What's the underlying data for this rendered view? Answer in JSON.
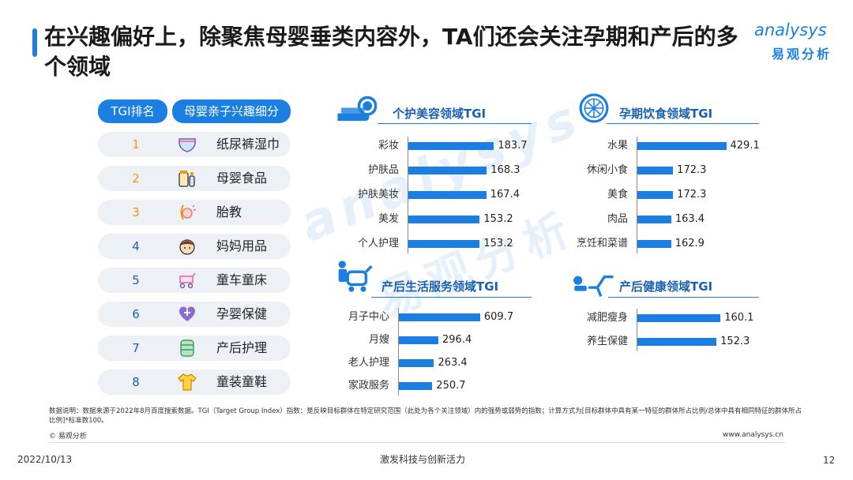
{
  "title": "在兴趣偏好上，除聚焦母婴垂类内容外，TA们还会关注孕期和产后的多个领域",
  "logo": {
    "en": "analysys",
    "zh": "易观分析"
  },
  "watermark": {
    "en": "analysys",
    "zh": "易观分析"
  },
  "rank_table": {
    "header_rank": "TGI排名",
    "header_category": "母婴亲子兴趣细分",
    "rows": [
      {
        "rank": "1",
        "label": "纸尿裤湿巾",
        "icon": "diaper-icon",
        "rank_color": "#f39800"
      },
      {
        "rank": "2",
        "label": "母婴食品",
        "icon": "baby-food-icon",
        "rank_color": "#f39800"
      },
      {
        "rank": "3",
        "label": "胎教",
        "icon": "prenatal-education-icon",
        "rank_color": "#f39800"
      },
      {
        "rank": "4",
        "label": "妈妈用品",
        "icon": "mom-products-icon",
        "rank_color": "#1a5fb0"
      },
      {
        "rank": "5",
        "label": "童车童床",
        "icon": "stroller-icon",
        "rank_color": "#1a5fb0"
      },
      {
        "rank": "6",
        "label": "孕婴保健",
        "icon": "health-heart-icon",
        "rank_color": "#1a5fb0"
      },
      {
        "rank": "7",
        "label": "产后护理",
        "icon": "postpartum-care-icon",
        "rank_color": "#1a5fb0"
      },
      {
        "rank": "8",
        "label": "童装童鞋",
        "icon": "kids-clothing-icon",
        "rank_color": "#1a5fb0"
      }
    ]
  },
  "chart_data": [
    {
      "type": "bar",
      "title": "个护美容领域TGI",
      "icon": "cosmetics-icon",
      "categories": [
        "彩妆",
        "护肤品",
        "护肤美妆",
        "美发",
        "个人护理"
      ],
      "values": [
        183.7,
        168.3,
        167.4,
        153.2,
        153.2
      ]
    },
    {
      "type": "bar",
      "title": "孕期饮食领域TGI",
      "icon": "diet-plate-icon",
      "categories": [
        "水果",
        "休闲小食",
        "美食",
        "肉品",
        "烹饪和菜谱"
      ],
      "values": [
        429.1,
        172.3,
        172.3,
        163.4,
        162.9
      ]
    },
    {
      "type": "bar",
      "title": "产后生活服务领域TGI",
      "icon": "family-service-icon",
      "categories": [
        "月子中心",
        "月嫂",
        "老人护理",
        "家政服务"
      ],
      "values": [
        609.7,
        296.4,
        263.4,
        250.7
      ]
    },
    {
      "type": "bar",
      "title": "产后健康领域TGI",
      "icon": "fitness-icon",
      "categories": [
        "减肥瘦身",
        "养生保健"
      ],
      "values": [
        160.1,
        152.3
      ]
    }
  ],
  "colors": {
    "accent": "#1a7fe0",
    "rank_top": "#f39800",
    "row_bg": "#edf1f6"
  },
  "footer": {
    "note": "数据说明：数据来源于2022年8月百度搜索数据。TGI（Target Group Index）指数：是反映目标群体在特定研究范围（此处为各个关注领域）内的强势或弱势的指数；计算方式为[目标群体中具有某一特征的群体所占比例/总体中具有相同特征的群体所占比例]*标准数100。",
    "copyright": "© 易观分析",
    "site": "www.analysys.cn",
    "date": "2022/10/13",
    "slogan": "激发科技与创新活力",
    "page": "12"
  }
}
